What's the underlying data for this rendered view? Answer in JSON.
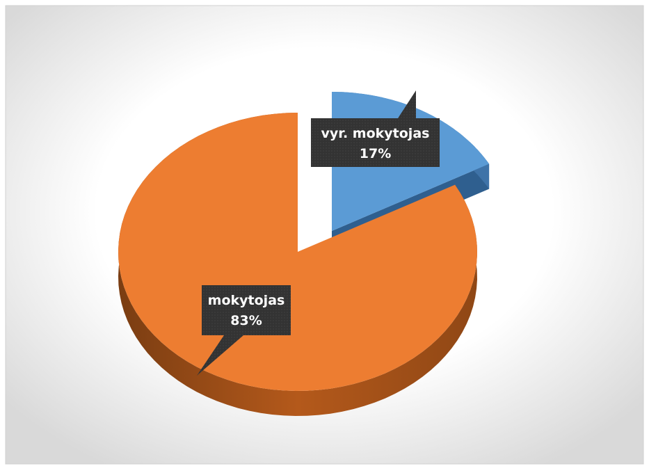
{
  "chart_data": {
    "type": "pie3d",
    "categories": [
      "vyr. mokytojas",
      "mokytojas"
    ],
    "values": [
      17,
      83
    ],
    "value_labels": [
      "17%",
      "83%"
    ],
    "colors": [
      "#5b9bd5",
      "#ed7d31"
    ]
  }
}
